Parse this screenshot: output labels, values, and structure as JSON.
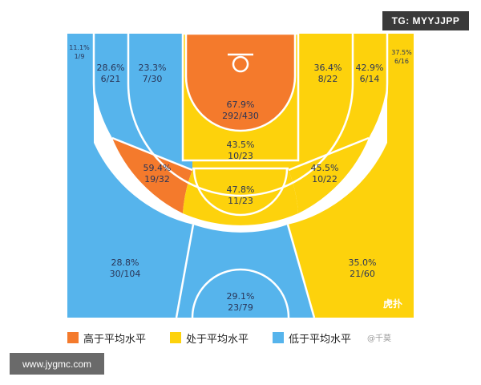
{
  "chart_data": {
    "type": "heatmap",
    "title": "",
    "zones": [
      {
        "id": "left-corner-three",
        "pct": "11.1%",
        "made_att": "1/9",
        "made": 1,
        "att": 9,
        "level": "low"
      },
      {
        "id": "left-wing-three-upper",
        "pct": "28.6%",
        "made_att": "6/21",
        "made": 6,
        "att": 21,
        "level": "low"
      },
      {
        "id": "left-baseline-mid",
        "pct": "23.3%",
        "made_att": "7/30",
        "made": 7,
        "att": 30,
        "level": "low"
      },
      {
        "id": "restricted-area",
        "pct": "67.9%",
        "made_att": "292/430",
        "made": 292,
        "att": 430,
        "level": "high"
      },
      {
        "id": "right-baseline-mid",
        "pct": "36.4%",
        "made_att": "8/22",
        "made": 8,
        "att": 22,
        "level": "avg"
      },
      {
        "id": "right-wing-three-upper",
        "pct": "42.9%",
        "made_att": "6/14",
        "made": 6,
        "att": 14,
        "level": "avg"
      },
      {
        "id": "right-corner-three",
        "pct": "37.5%",
        "made_att": "6/16",
        "made": 6,
        "att": 16,
        "level": "avg"
      },
      {
        "id": "paint",
        "pct": "43.5%",
        "made_att": "10/23",
        "made": 10,
        "att": 23,
        "level": "avg"
      },
      {
        "id": "left-elbow-mid",
        "pct": "59.4%",
        "made_att": "19/32",
        "made": 19,
        "att": 32,
        "level": "high"
      },
      {
        "id": "right-elbow-mid",
        "pct": "45.5%",
        "made_att": "10/22",
        "made": 10,
        "att": 22,
        "level": "avg"
      },
      {
        "id": "top-key-mid",
        "pct": "47.8%",
        "made_att": "11/23",
        "made": 11,
        "att": 23,
        "level": "avg"
      },
      {
        "id": "left-wing-three",
        "pct": "28.8%",
        "made_att": "30/104",
        "made": 30,
        "att": 104,
        "level": "low"
      },
      {
        "id": "right-wing-three",
        "pct": "35.0%",
        "made_att": "21/60",
        "made": 21,
        "att": 60,
        "level": "avg"
      },
      {
        "id": "top-three",
        "pct": "29.1%",
        "made_att": "23/79",
        "made": 23,
        "att": 79,
        "level": "low"
      }
    ],
    "legend": [
      {
        "key": "high",
        "label": "高于平均水平",
        "color": "#f47a2c"
      },
      {
        "key": "avg",
        "label": "处于平均水平",
        "color": "#fdd20c"
      },
      {
        "key": "low",
        "label": "低于平均水平",
        "color": "#56b4ec"
      }
    ]
  },
  "overlays": {
    "tag": "TG: MYYJJPP",
    "site": "www.jygmc.com",
    "watermark_user": "@千莫",
    "watermark_logo": "虎扑"
  }
}
